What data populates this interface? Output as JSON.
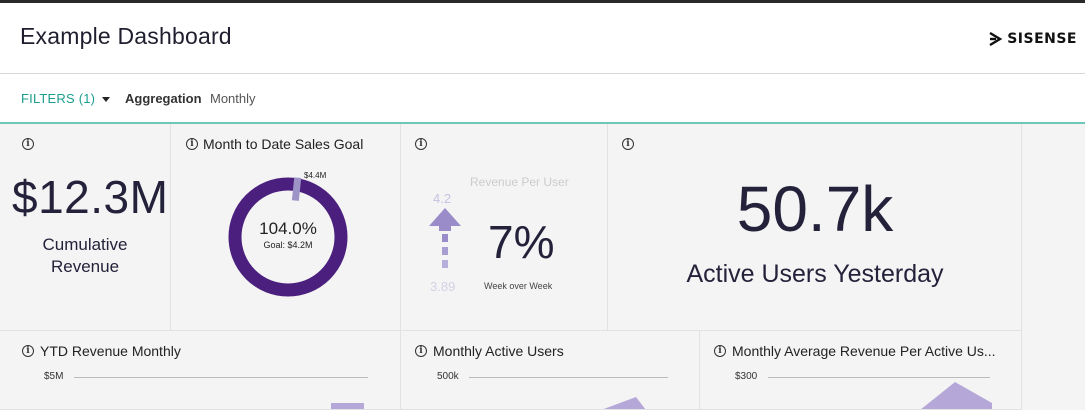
{
  "header": {
    "title": "Example Dashboard",
    "brand": "SISENSE"
  },
  "filterbar": {
    "filters_label": "FILTERS",
    "filters_count": "(1)",
    "aggregation_label": "Aggregation",
    "aggregation_value": "Monthly"
  },
  "widgets": {
    "cumulative": {
      "value": "$12.3M",
      "label_line1": "Cumulative",
      "label_line2": "Revenue"
    },
    "sales_goal": {
      "title": "Month to Date Sales Goal",
      "percent": "104.0%",
      "goal": "Goal: $4.2M",
      "marker": "$4.4M",
      "progress": 1.04
    },
    "rpu": {
      "title": "Revenue Per User",
      "top": "4.2",
      "bottom": "3.89",
      "change": "7%",
      "period": "Week over Week"
    },
    "active_users": {
      "value": "50.7k",
      "label": "Active Users Yesterday"
    },
    "ytd": {
      "title": "YTD Revenue Monthly",
      "tick": "$5M"
    },
    "mau": {
      "title": "Monthly Active Users",
      "tick": "500k"
    },
    "marpau": {
      "title": "Monthly Average Revenue Per Active Us...",
      "tick": "$300"
    }
  },
  "colors": {
    "accent": "#1a9e8d",
    "ring": "#4a1f7e",
    "soft_purple": "#b5a8d8"
  }
}
